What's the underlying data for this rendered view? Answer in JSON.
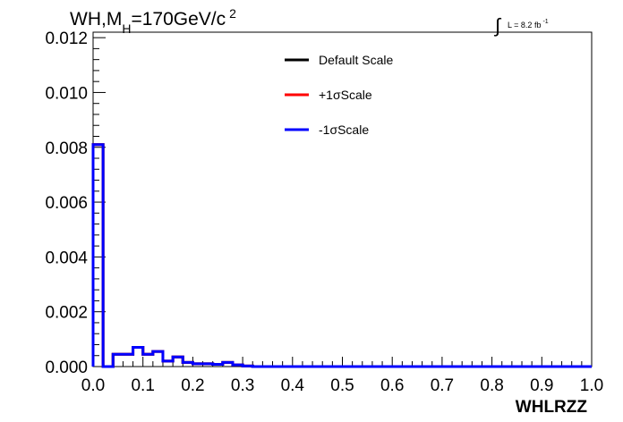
{
  "chart_data": {
    "type": "step-histogram",
    "title": {
      "prefix": "WH,M",
      "subscript": "H",
      "value": "=170GeV/c",
      "superscript": "2"
    },
    "lumi": {
      "integral": "∫",
      "text": "L = 8.2 fb",
      "superscript": "-1"
    },
    "xlabel": "WHLRZZ",
    "ylabel": "",
    "xlim": [
      0.0,
      1.0
    ],
    "ylim": [
      0.0,
      0.0122
    ],
    "x_ticks": [
      "0.0",
      "0.1",
      "0.2",
      "0.3",
      "0.4",
      "0.5",
      "0.6",
      "0.7",
      "0.8",
      "0.9",
      "1.0"
    ],
    "y_ticks": [
      "0.000",
      "0.002",
      "0.004",
      "0.006",
      "0.008",
      "0.010",
      "0.012"
    ],
    "bin_width": 0.02,
    "legend_position": "top-center",
    "grid": false,
    "series": [
      {
        "name": "Default Scale",
        "color": "#000000",
        "values": [
          0.0081,
          0.0,
          0.00045,
          0.00045,
          0.0007,
          0.00045,
          0.00055,
          0.0002,
          0.00035,
          0.00015,
          0.0001,
          0.0001,
          8e-05,
          0.00015,
          6e-05,
          2e-05,
          0,
          0,
          0,
          0,
          0,
          0,
          0,
          0,
          0,
          0,
          0,
          0,
          0,
          0,
          0,
          0,
          0,
          0,
          0,
          0,
          0,
          0,
          0,
          0,
          0,
          0,
          0,
          0,
          0,
          0,
          0,
          0,
          0,
          0
        ]
      },
      {
        "name": "+1σScale",
        "color": "#ff0000",
        "values": [
          0.0081,
          0.0,
          0.00045,
          0.00045,
          0.0007,
          0.00045,
          0.00055,
          0.0002,
          0.00035,
          0.00015,
          0.0001,
          0.0001,
          8e-05,
          0.00015,
          6e-05,
          2e-05,
          0,
          0,
          0,
          0,
          0,
          0,
          0,
          0,
          0,
          0,
          0,
          0,
          0,
          0,
          0,
          0,
          0,
          0,
          0,
          0,
          0,
          0,
          0,
          0,
          0,
          0,
          0,
          0,
          0,
          0,
          0,
          0,
          0,
          0
        ]
      },
      {
        "name": "-1σScale",
        "color": "#0000ff",
        "values": [
          0.0081,
          0.0,
          0.00045,
          0.00045,
          0.0007,
          0.00045,
          0.00055,
          0.0002,
          0.00035,
          0.00015,
          0.0001,
          0.0001,
          8e-05,
          0.00015,
          6e-05,
          2e-05,
          0,
          0,
          0,
          0,
          0,
          0,
          0,
          0,
          0,
          0,
          0,
          0,
          0,
          0,
          0,
          0,
          0,
          0,
          0,
          0,
          0,
          0,
          0,
          0,
          0,
          0,
          0,
          0,
          0,
          0,
          0,
          0,
          0,
          0
        ]
      }
    ]
  }
}
